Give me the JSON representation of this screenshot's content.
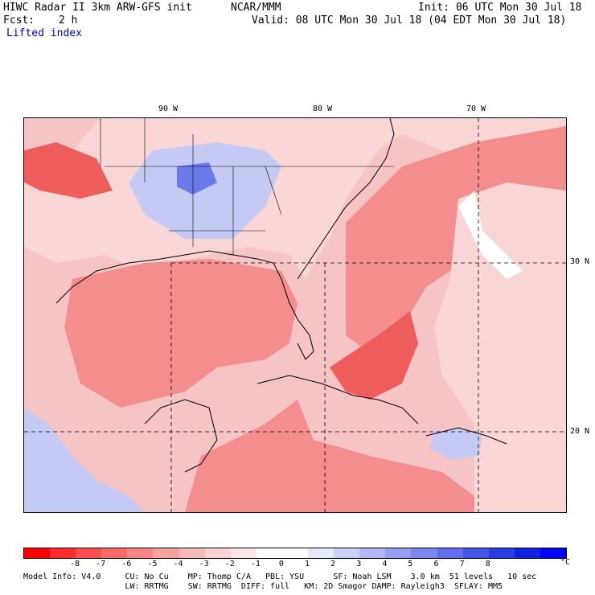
{
  "header": {
    "title": "HIWC Radar II 3km ARW-GFS init",
    "org": "NCAR/MMM",
    "init": "Init: 06 UTC Mon 30 Jul 18",
    "fcst_label": "Fcst:",
    "fcst_value": "2 h",
    "valid": "Valid: 08 UTC Mon 30 Jul 18 (04 EDT Mon 30 Jul 18)",
    "field": "Lifted index"
  },
  "map": {
    "lon_labels": [
      "90 W",
      "80 W",
      "70 W"
    ],
    "lat_labels": [
      "30 N",
      "20 N"
    ],
    "colors": {
      "ocean_base": "#f6c4c4",
      "strong_red": "#ee5c5c",
      "mid_red": "#f48e8e",
      "light_red": "#f9d6d6",
      "blue_stable": "#c4caf4",
      "deep_blue": "#6a7ae8"
    }
  },
  "colorbar": {
    "ticks": [
      "-8",
      "-7",
      "-6",
      "-5",
      "-4",
      "-3",
      "-2",
      "-1",
      "0",
      "1",
      "2",
      "3",
      "4",
      "5",
      "6",
      "7",
      "8"
    ],
    "unit": "°C",
    "colors": [
      "#ff0000",
      "#ff2a2a",
      "#ff4e4e",
      "#fb6a6a",
      "#f98686",
      "#f8a0a0",
      "#f9baba",
      "#fbd2d2",
      "#fde6e6",
      "#ffffff",
      "#ffffff",
      "#e6e8fc",
      "#cdd1f9",
      "#b2b8f6",
      "#979ff3",
      "#7c86f0",
      "#616dec",
      "#4654e9",
      "#2b3be6",
      "#1022e3",
      "#0000ff"
    ]
  },
  "footer": {
    "line1": "Model Info: V4.0     CU: No Cu    MP: Thomp C/A   PBL: YSU      SF: Noah LSM    3.0 km  51 levels   10 sec",
    "line2": "                     LW: RRTMG    SW: RRTMG  DIFF: full   KM: 2D Smagor DAMP: Rayleigh3  SFLAY: MM5"
  }
}
